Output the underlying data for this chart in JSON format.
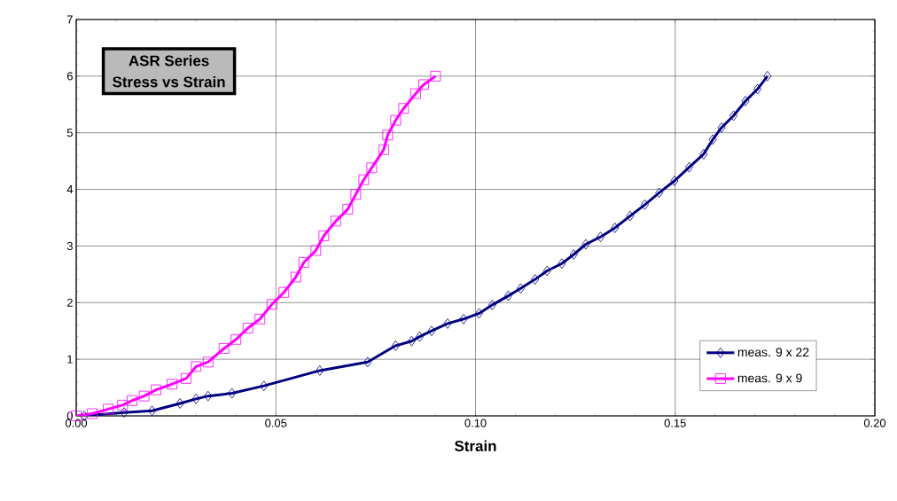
{
  "chart_data": {
    "type": "line",
    "title": "ASR Series",
    "subtitle": "Stress vs Strain",
    "xlabel": "Strain",
    "xlim": [
      0,
      0.2
    ],
    "ylim": [
      0,
      7
    ],
    "xticks": [
      {
        "value": 0,
        "label": "0.00"
      },
      {
        "value": 0.05,
        "label": "0.05"
      },
      {
        "value": 0.1,
        "label": "0.10"
      },
      {
        "value": 0.15,
        "label": "0.15"
      },
      {
        "value": 0.2,
        "label": "0.20"
      }
    ],
    "yticks": [
      0,
      1,
      2,
      3,
      4,
      5,
      6,
      7
    ],
    "grid": true,
    "legend": "bottom right",
    "series": [
      {
        "name": "meas. 9 x 22",
        "color": "#000080",
        "marker": "diamond",
        "x": [
          0.002,
          0.012,
          0.019,
          0.026,
          0.03,
          0.033,
          0.039,
          0.047,
          0.061,
          0.073,
          0.08,
          0.084,
          0.086,
          0.089,
          0.093,
          0.097,
          0.1009,
          0.1042,
          0.1082,
          0.1113,
          0.1149,
          0.1179,
          0.1216,
          0.1246,
          0.1276,
          0.1313,
          0.1349,
          0.1387,
          0.1424,
          0.146,
          0.1498,
          0.1535,
          0.1571,
          0.1594,
          0.1616,
          0.1646,
          0.1676,
          0.1706,
          0.1731
        ],
        "values": [
          0,
          0.06,
          0.09,
          0.22,
          0.3,
          0.35,
          0.4,
          0.53,
          0.8,
          0.95,
          1.24,
          1.32,
          1.4,
          1.5,
          1.63,
          1.71,
          1.81,
          1.96,
          2.12,
          2.25,
          2.41,
          2.56,
          2.69,
          2.85,
          3.03,
          3.16,
          3.32,
          3.53,
          3.73,
          3.94,
          4.15,
          4.39,
          4.62,
          4.88,
          5.09,
          5.3,
          5.56,
          5.77,
          6.0
        ]
      },
      {
        "name": "meas. 9 x 9",
        "color": "#ff00ff",
        "marker": "square",
        "x": [
          0,
          0.004,
          0.008,
          0.0116,
          0.014,
          0.017,
          0.02,
          0.024,
          0.0275,
          0.03,
          0.033,
          0.037,
          0.04,
          0.043,
          0.046,
          0.049,
          0.052,
          0.055,
          0.057,
          0.06,
          0.062,
          0.065,
          0.068,
          0.07,
          0.072,
          0.074,
          0.077,
          0.078,
          0.08,
          0.082,
          0.085,
          0.087,
          0.09
        ],
        "values": [
          0,
          0.04,
          0.12,
          0.19,
          0.27,
          0.35,
          0.46,
          0.56,
          0.66,
          0.87,
          0.95,
          1.19,
          1.35,
          1.55,
          1.71,
          1.97,
          2.18,
          2.45,
          2.71,
          2.92,
          3.18,
          3.44,
          3.65,
          3.91,
          4.17,
          4.38,
          4.7,
          4.96,
          5.22,
          5.43,
          5.69,
          5.85,
          6.0
        ]
      }
    ]
  }
}
